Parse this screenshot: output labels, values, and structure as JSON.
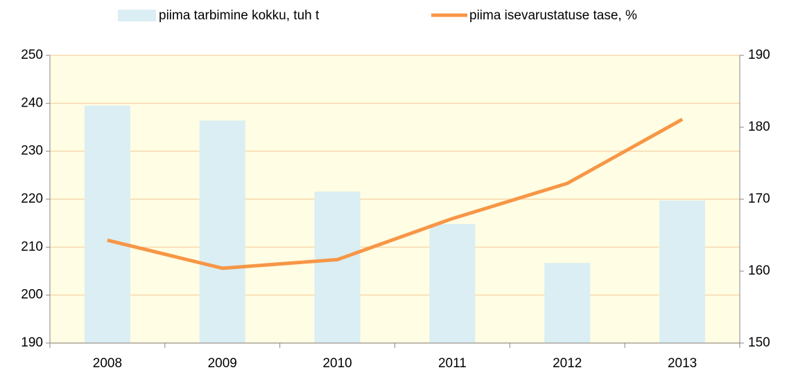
{
  "chart_data": {
    "type": "bar",
    "categories": [
      "2008",
      "2009",
      "2010",
      "2011",
      "2012",
      "2013"
    ],
    "series": [
      {
        "name": "piima tarbimine kokku, tuh t",
        "type": "bar",
        "color": "#daeef3",
        "axis": "y",
        "values": [
          239.5,
          236.4,
          221.6,
          214.8,
          206.7,
          219.7
        ]
      },
      {
        "name": "piima isevarustatuse tase, %",
        "type": "line",
        "color": "#f79646",
        "axis": "y2",
        "values": [
          164.3,
          160.4,
          161.6,
          167.3,
          172.2,
          181.1
        ]
      }
    ],
    "ylim": [
      190,
      250
    ],
    "yticks": [
      190,
      200,
      210,
      220,
      230,
      240,
      250
    ],
    "y2lim": [
      150,
      190
    ],
    "y2ticks": [
      150,
      160,
      170,
      180,
      190
    ],
    "grid": true,
    "legend": "top",
    "plot_background": "#fffde3",
    "grid_color": "#f6d8ad"
  }
}
